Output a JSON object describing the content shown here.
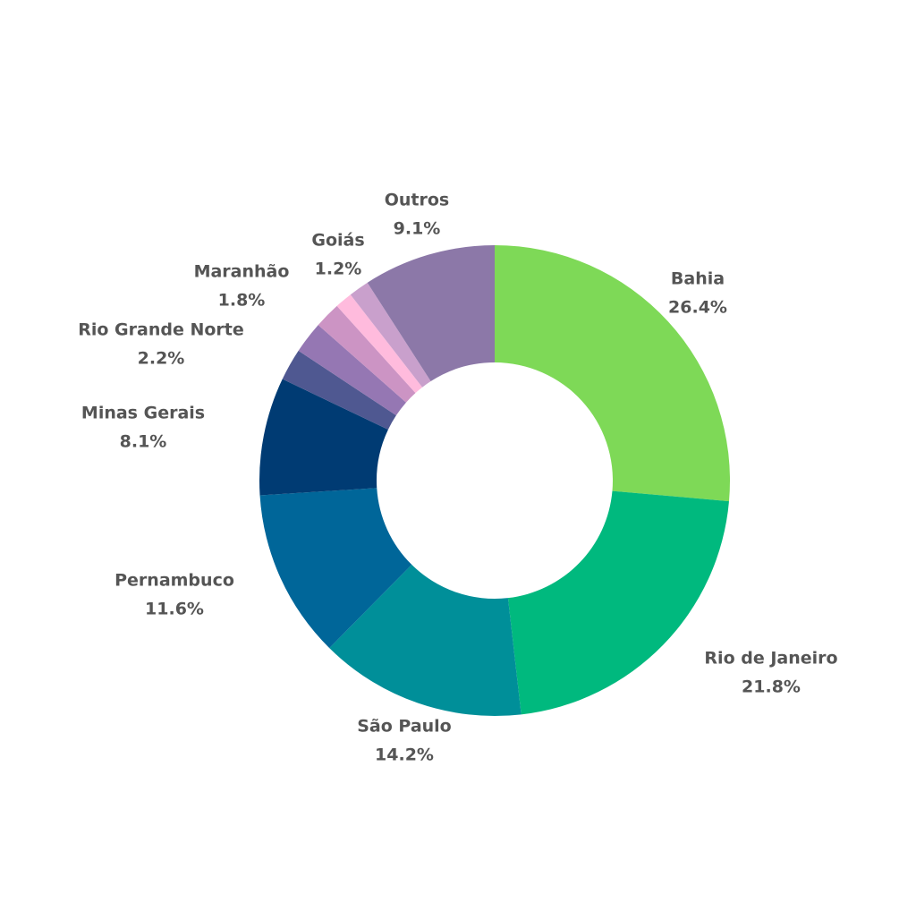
{
  "chart_data": {
    "type": "donut",
    "categories": [
      "Bahia",
      "Rio de Janeiro",
      "São Paulo",
      "Pernambuco",
      "Minas Gerais",
      "Rio Grande Norte",
      null,
      "Maranhão",
      "Goiás",
      null,
      "Outros"
    ],
    "values": [
      26.4,
      21.8,
      14.2,
      11.6,
      8.1,
      2.2,
      2.2,
      1.8,
      1.2,
      1.4,
      9.1
    ],
    "value_labels": [
      "26.4%",
      "21.8%",
      "14.2%",
      "11.6%",
      "8.1%",
      "2.2%",
      null,
      "1.8%",
      "1.2%",
      null,
      "9.1%"
    ],
    "colors": [
      "#7ed957",
      "#00b97e",
      "#008f99",
      "#006699",
      "#003b73",
      "#4f5891",
      "#9577b3",
      "#cc94c4",
      "#ffbbdd",
      "#c9a0cc",
      "#8c78a8"
    ]
  }
}
